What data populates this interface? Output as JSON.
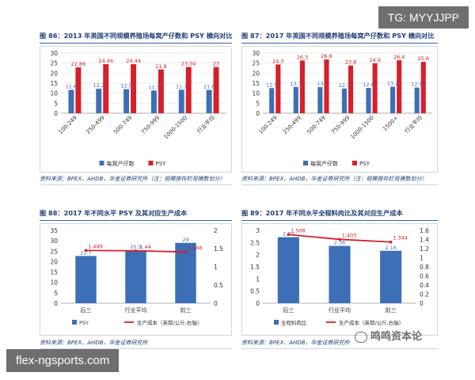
{
  "watermark_tag": "TG: MYYJJPP",
  "site_label": "flex-ngsports.com",
  "wechat_watermark": "鸣鸣资本论",
  "colors": {
    "blue": "#3d6fb6",
    "red": "#d6202a",
    "title": "#1f3f73"
  },
  "charts": [
    {
      "title": "图 86：2013 年英国不同规模养殖场每窝产仔数和 PSY 横向对比",
      "source": "资料来源：BPEX、AHDB，华金证券研究所（注：规模按存栏母猪数划分）",
      "chart_data": {
        "type": "bar",
        "categories": [
          "100-249",
          "250-499",
          "500-749",
          "750-999",
          "1000-1500",
          "行业平均"
        ],
        "series": [
          {
            "name": "每窝产仔数",
            "values": [
              11.6,
              12.2,
              12.0,
              11.3,
              11.7,
              11.6
            ],
            "labels": [
              "11.6",
              "12.2",
              "12.0",
              "11.3",
              "11.7",
              "11.6"
            ]
          },
          {
            "name": "PSY",
            "values": [
              22.86,
              24.46,
              24.44,
              21.8,
              23.04,
              23
            ],
            "labels": [
              "22.86",
              "24.46",
              "24.44",
              "21.8",
              "23.04",
              "23"
            ]
          }
        ],
        "ylim": [
          0,
          30
        ],
        "yticks": [
          "0",
          "5",
          "10",
          "15",
          "20",
          "25",
          "30"
        ],
        "legend": "bottom"
      }
    },
    {
      "title": "图 87：2017 年英国不同规模养殖场每窝产仔数和 PSY 横向对比",
      "source": "资料来源：BPEX、AHDB，华金证券研究所（注：规模按存栏母猪数划分）",
      "chart_data": {
        "type": "bar",
        "categories": [
          "100-249",
          "250-499",
          "500-749",
          "750-999",
          "1000-1500",
          "1500+",
          "行业平均"
        ],
        "series": [
          {
            "name": "每窝产仔数",
            "values": [
              12.5,
              13.1,
              13,
              12.3,
              12.6,
              13.2,
              12.8
            ],
            "labels": [
              "12.5",
              "13.1",
              "13",
              "12.3",
              "12.6",
              "13.2",
              "12.8"
            ]
          },
          {
            "name": "PSY",
            "values": [
              24.3,
              26.3,
              26.8,
              23.8,
              24.9,
              26.4,
              25.6
            ],
            "labels": [
              "24.3",
              "26.3",
              "26.8",
              "23.8",
              "24.9",
              "26.4",
              "25.6"
            ]
          }
        ],
        "ylim": [
          0,
          30
        ],
        "yticks": [
          "0",
          "5",
          "10",
          "15",
          "20",
          "25",
          "30"
        ],
        "legend": "bottom"
      }
    },
    {
      "title": "图 88：2017 年不同水平 PSY 及其对应生产成本",
      "source": "资料来源：BPEX、AHDB，华金证券研究所",
      "chart_data": {
        "type": "bar",
        "categories": [
          "后三",
          "行业平均",
          "前三"
        ],
        "series": [
          {
            "name": "PSY",
            "values": [
              22.7,
              25.5,
              29
            ],
            "labels": [
              "22.7",
              "25.5",
              "29"
            ],
            "kind": "bar",
            "axis": "left"
          },
          {
            "name": "生产成本（英镑/公斤,右轴）",
            "values": [
              1.449,
              1.44,
              1.406
            ],
            "labels": [
              "1.449",
              "1.44",
              "1.406"
            ],
            "kind": "line",
            "axis": "right"
          }
        ],
        "ylim": [
          0,
          35
        ],
        "yticks": [
          "0",
          "5",
          "10",
          "15",
          "20",
          "25",
          "30",
          "35"
        ],
        "y2lim": [
          0,
          2
        ],
        "y2ticks": [
          "0",
          "0.5",
          "1",
          "1.5",
          "2"
        ],
        "legend": "bottom"
      }
    },
    {
      "title": "图 89：2017 年不同水平全程料肉比及其对应生产成本",
      "source": "资料来源：BPEX、AHDB，华金证券研究所",
      "chart_data": {
        "type": "bar",
        "categories": [
          "后三",
          "行业平均",
          "前三"
        ],
        "series": [
          {
            "name": "全程料肉比",
            "values": [
              2.72,
              2.36,
              2.16
            ],
            "labels": [
              "2.72",
              "2.36",
              "2.16"
            ],
            "kind": "bar",
            "axis": "left"
          },
          {
            "name": "生产成本（英镑/公斤,右轴）",
            "values": [
              1.508,
              1.403,
              1.344
            ],
            "labels": [
              "1.508",
              "1.403",
              "1.344"
            ],
            "kind": "line",
            "axis": "right"
          }
        ],
        "ylim": [
          0,
          3
        ],
        "yticks": [
          "0",
          "0.5",
          "1",
          "1.5",
          "2",
          "2.5",
          "3"
        ],
        "y2lim": [
          0,
          1.6
        ],
        "y2ticks": [
          "0",
          "0.2",
          "0.4",
          "0.6",
          "0.8",
          "1",
          "1.2",
          "1.4",
          "1.6"
        ],
        "legend": "bottom"
      }
    }
  ]
}
